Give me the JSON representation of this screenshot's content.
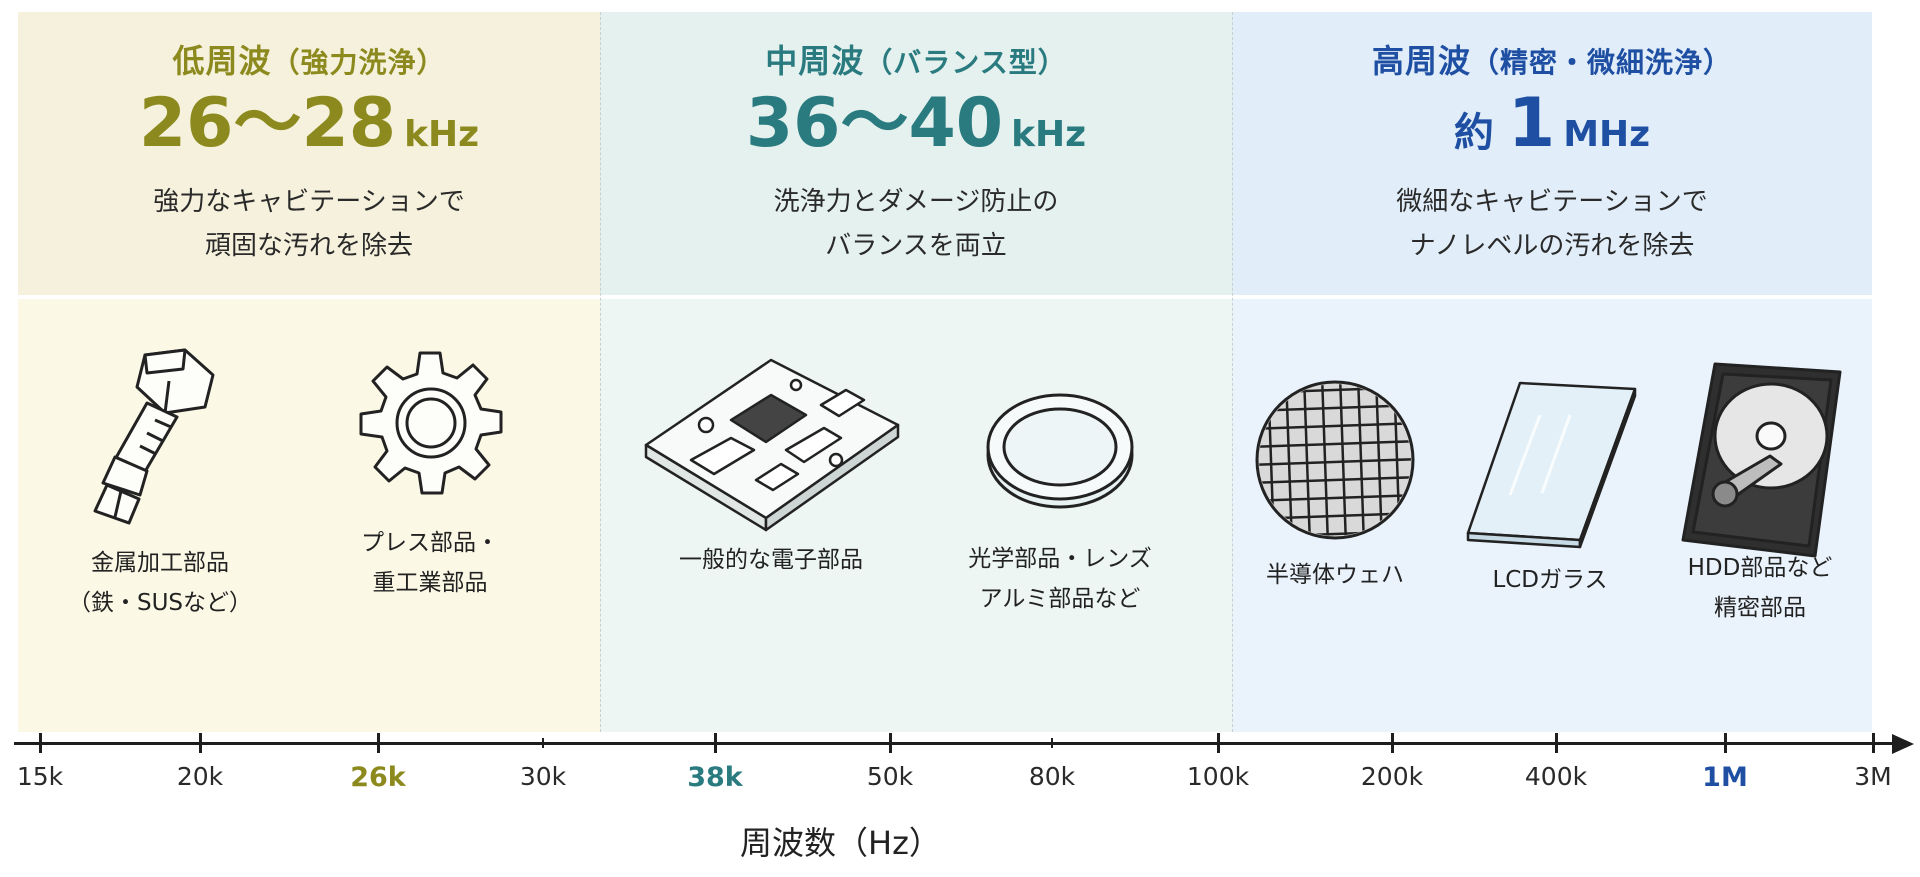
{
  "zones": {
    "low": {
      "title": "低周波",
      "subtitle": "（強力洗浄）",
      "freq_prefix": "",
      "freq_value": "26～28",
      "freq_unit": "kHz",
      "desc_line1": "強力なキャビテーションで",
      "desc_line2": "頑固な汚れを除去",
      "color": "#8c8a1e",
      "items": [
        {
          "icon": "bolt-icon",
          "label_line1": "金属加工部品",
          "label_line2": "（鉄・SUSなど）"
        },
        {
          "icon": "gear-icon",
          "label_line1": "プレス部品・",
          "label_line2": "重工業部品"
        }
      ]
    },
    "mid": {
      "title": "中周波",
      "subtitle": "（バランス型）",
      "freq_prefix": "",
      "freq_value": "36～40",
      "freq_unit": "kHz",
      "desc_line1": "洗浄力とダメージ防止の",
      "desc_line2": "バランスを両立",
      "color": "#2a7b80",
      "items": [
        {
          "icon": "circuit-board-icon",
          "label_line1": "一般的な電子部品",
          "label_line2": ""
        },
        {
          "icon": "lens-icon",
          "label_line1": "光学部品・レンズ",
          "label_line2": "アルミ部品など"
        }
      ]
    },
    "high": {
      "title": "高周波",
      "subtitle": "（精密・微細洗浄）",
      "freq_prefix": "約",
      "freq_value": "1",
      "freq_unit": "MHz",
      "desc_line1": "微細なキャビテーションで",
      "desc_line2": "ナノレベルの汚れを除去",
      "color": "#1f4fa3",
      "items": [
        {
          "icon": "wafer-icon",
          "label_line1": "半導体ウェハ",
          "label_line2": ""
        },
        {
          "icon": "glass-panel-icon",
          "label_line1": "LCDガラス",
          "label_line2": ""
        },
        {
          "icon": "hdd-icon",
          "label_line1": "HDD部品など",
          "label_line2": "精密部品"
        }
      ]
    }
  },
  "axis": {
    "title": "周波数（Hz）",
    "scale": "log",
    "ticks": [
      "15k",
      "20k",
      "26k",
      "30k",
      "38k",
      "50k",
      "80k",
      "100k",
      "200k",
      "400k",
      "1M",
      "3M"
    ],
    "highlighted_ticks": {
      "26k": "#8c8a1e",
      "38k": "#2a7b80",
      "1M": "#1f4fa3"
    }
  }
}
